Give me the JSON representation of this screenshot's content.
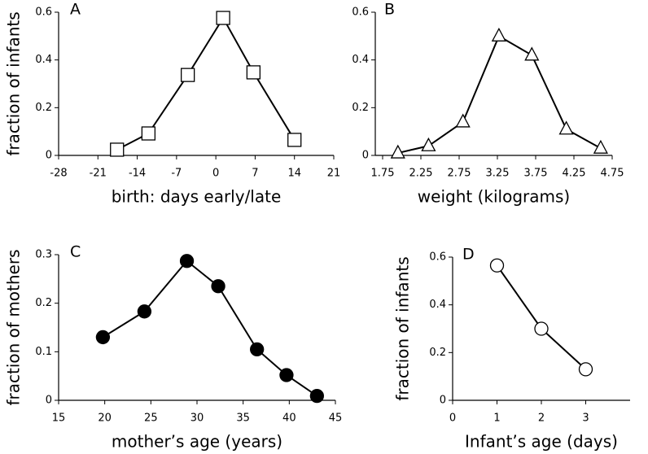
{
  "chart_data": [
    {
      "type": "line",
      "label": "A",
      "x_label": "birth: days early/late",
      "y_label": "fraction of infants",
      "x": [
        -17.6,
        -12,
        -5,
        1.3,
        6.7,
        14
      ],
      "values": [
        0.024,
        0.092,
        0.337,
        0.576,
        0.348,
        0.065
      ],
      "marker": "square",
      "marker_fill": "#ffffff",
      "color": "#000000",
      "xlim": [
        -28,
        21
      ],
      "xticks": [
        -28,
        -21,
        -14,
        -7,
        0,
        7,
        14,
        21
      ],
      "ylim": [
        0,
        0.6
      ],
      "yticks": [
        0,
        0.2,
        0.4,
        0.6
      ]
    },
    {
      "type": "line",
      "label": "B",
      "x_label": "weight (kilograms)",
      "x": [
        1.95,
        2.35,
        2.8,
        3.27,
        3.7,
        4.15,
        4.6
      ],
      "values": [
        0.01,
        0.04,
        0.14,
        0.5,
        0.42,
        0.11,
        0.03
      ],
      "marker": "triangle",
      "marker_fill": "#ffffff",
      "color": "#000000",
      "xlim": [
        1.75,
        4.75
      ],
      "xticks": [
        1.75,
        2.25,
        2.75,
        3.25,
        3.75,
        4.25,
        4.75
      ],
      "ylim": [
        0,
        0.6
      ],
      "yticks": [
        0,
        0.2,
        0.4,
        0.6
      ]
    },
    {
      "type": "line",
      "label": "C",
      "x_label": "mother’s age (years)",
      "y_label": "fraction of mothers",
      "x": [
        19.8,
        24.3,
        28.9,
        32.3,
        36.5,
        39.7,
        43
      ],
      "values": [
        0.13,
        0.183,
        0.287,
        0.235,
        0.105,
        0.052,
        0.009
      ],
      "marker": "circle",
      "marker_fill": "#000000",
      "color": "#000000",
      "xlim": [
        15,
        45
      ],
      "xticks": [
        15,
        20,
        25,
        30,
        35,
        40,
        45
      ],
      "ylim": [
        0,
        0.3
      ],
      "yticks": [
        0,
        0.1,
        0.2,
        0.3
      ]
    },
    {
      "type": "line",
      "label": "D",
      "x_label": "Infant’s age (days)",
      "y_label": "fraction of infants",
      "x": [
        1,
        2,
        3
      ],
      "values": [
        0.565,
        0.3,
        0.13
      ],
      "marker": "circle",
      "marker_fill": "#ffffff",
      "color": "#000000",
      "xlim": [
        0,
        4
      ],
      "xticks": [
        0,
        1,
        2,
        3
      ],
      "ylim": [
        0,
        0.6
      ],
      "yticks": [
        0,
        0.2,
        0.4,
        0.6
      ]
    }
  ]
}
